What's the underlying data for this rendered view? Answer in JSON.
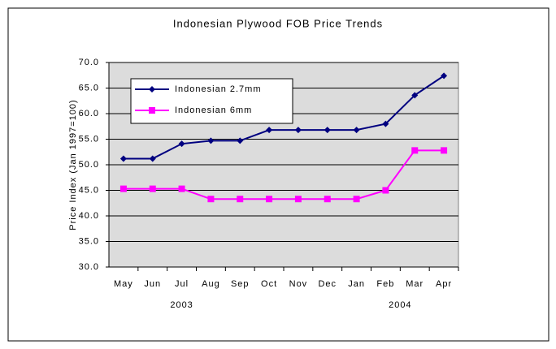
{
  "chart_data": {
    "type": "line",
    "title": "Indonesian Plywood FOB Price Trends",
    "y_label": "Price Index (Jan 1997=100)",
    "categories": [
      "May",
      "Jun",
      "Jul",
      "Aug",
      "Sep",
      "Oct",
      "Nov",
      "Dec",
      "Jan",
      "Feb",
      "Mar",
      "Apr"
    ],
    "annotations": [
      "2003",
      "2004"
    ],
    "series": [
      {
        "name": "Indonesian 2.7mm",
        "color": "#000080",
        "marker": "diamond",
        "values": [
          51.2,
          51.2,
          54.1,
          54.7,
          54.7,
          56.8,
          56.8,
          56.8,
          56.8,
          58.0,
          63.6,
          67.4
        ]
      },
      {
        "name": "Indonesian 6mm",
        "color": "#ff00ff",
        "marker": "square",
        "values": [
          45.3,
          45.3,
          45.3,
          43.3,
          43.3,
          43.3,
          43.3,
          43.3,
          43.3,
          45.0,
          52.8,
          52.8
        ]
      }
    ],
    "ylim": [
      30,
      70
    ],
    "yticks": [
      {
        "value": 30,
        "label": "30.0"
      },
      {
        "value": 35,
        "label": "35.0"
      },
      {
        "value": 40,
        "label": "40.0"
      },
      {
        "value": 45,
        "label": "45.0"
      },
      {
        "value": 50,
        "label": "50.0"
      },
      {
        "value": 55,
        "label": "55.0"
      },
      {
        "value": 60,
        "label": "60.0"
      },
      {
        "value": 65,
        "label": "65.0"
      },
      {
        "value": 70,
        "label": "70.0"
      }
    ],
    "grid": true,
    "plot_background": "#dcdcdc"
  }
}
